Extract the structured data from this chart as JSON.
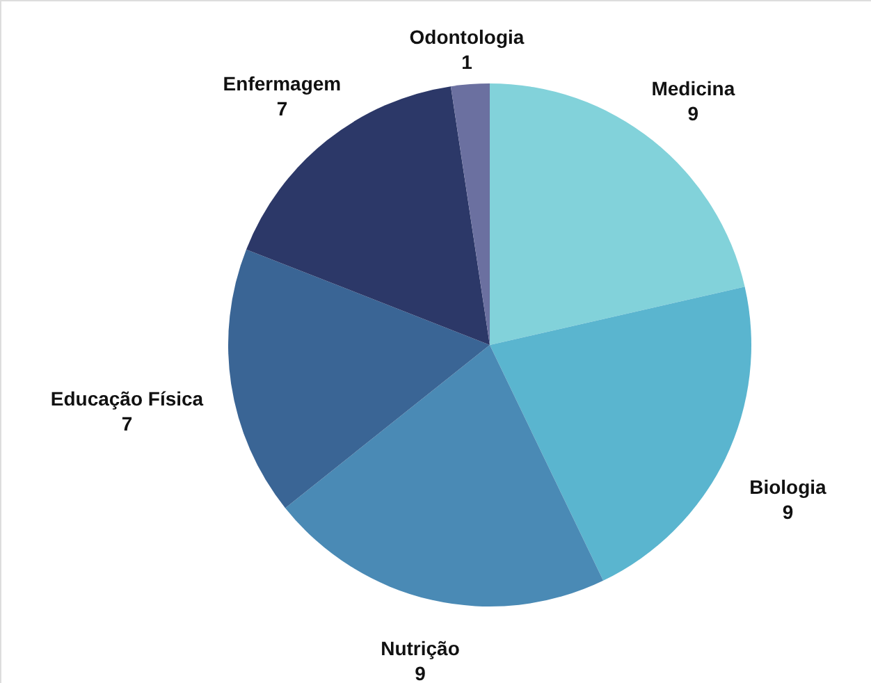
{
  "chart_data": {
    "type": "pie",
    "categories": [
      "Medicina",
      "Biologia",
      "Nutrição",
      "Educação Física",
      "Enfermagem",
      "Odontologia"
    ],
    "values": [
      9,
      9,
      9,
      7,
      7,
      1
    ],
    "colors": [
      "#82d2da",
      "#5ab5cf",
      "#4a8ab5",
      "#3a6595",
      "#2c3868",
      "#6b70a0"
    ],
    "data_labels": true
  }
}
